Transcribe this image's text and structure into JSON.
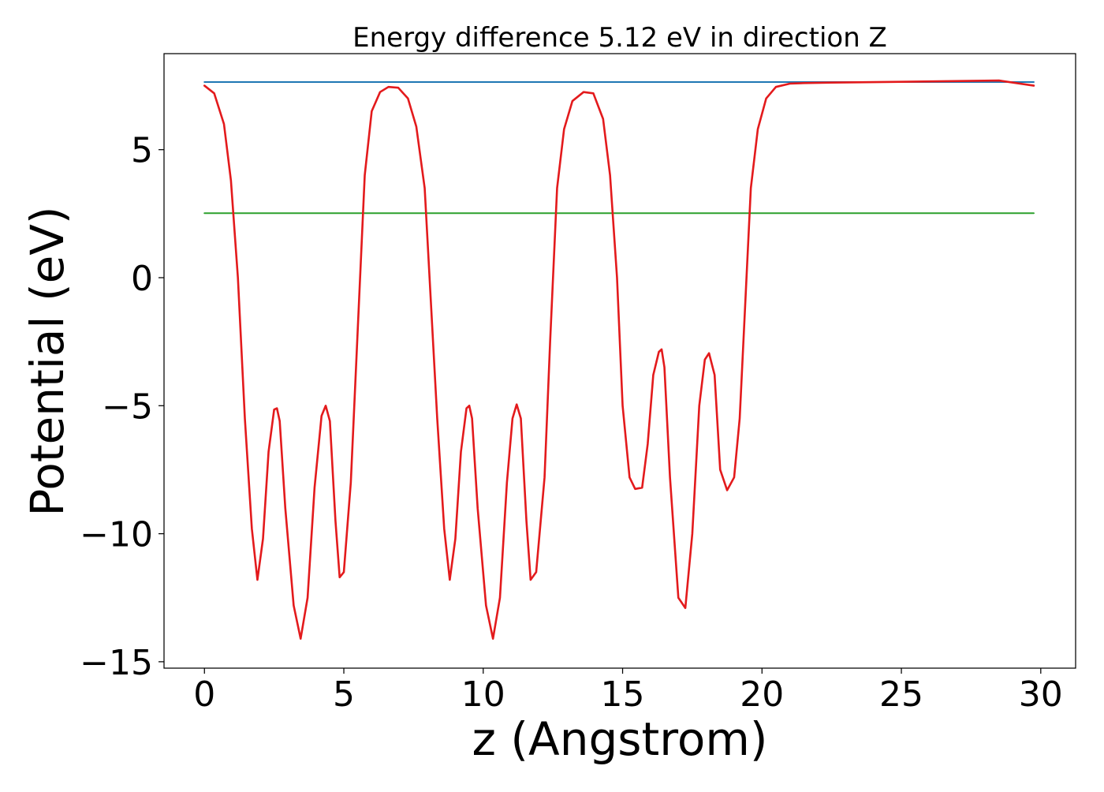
{
  "chart_data": {
    "type": "line",
    "title": "Energy difference 5.12 eV in direction Z",
    "xlabel": "z (Angstrom)",
    "ylabel": "Potential (eV)",
    "xlim": [
      -1.45,
      31.25
    ],
    "ylim": [
      -15.25,
      8.75
    ],
    "x_ticks": [
      0,
      5,
      10,
      15,
      20,
      25,
      30
    ],
    "x_tick_labels": [
      "0",
      "5",
      "10",
      "15",
      "20",
      "25",
      "30"
    ],
    "y_ticks": [
      5,
      0,
      -5,
      -10,
      -15
    ],
    "y_tick_labels": [
      "5",
      "0",
      "−5",
      "−10",
      "−15"
    ],
    "grid": false,
    "legend": "none",
    "series": [
      {
        "color": "#1f77b4",
        "x": [
          0,
          29.75
        ],
        "y": [
          7.64,
          7.64
        ]
      },
      {
        "color": "#2ca02c",
        "x": [
          0,
          29.75
        ],
        "y": [
          2.52,
          2.52
        ]
      },
      {
        "color": "#e31a1c",
        "x": [
          0,
          0.35,
          0.7,
          0.95,
          1.2,
          1.45,
          1.7,
          1.9,
          2.1,
          2.3,
          2.5,
          2.6,
          2.7,
          2.9,
          3.2,
          3.45,
          3.7,
          3.95,
          4.2,
          4.35,
          4.5,
          4.7,
          4.85,
          5.0,
          5.25,
          5.5,
          5.75,
          6.0,
          6.3,
          6.6,
          6.95,
          7.3,
          7.6,
          7.9,
          8.1,
          8.35,
          8.6,
          8.8,
          9.0,
          9.2,
          9.4,
          9.5,
          9.6,
          9.8,
          10.1,
          10.35,
          10.6,
          10.85,
          11.05,
          11.2,
          11.35,
          11.55,
          11.7,
          11.9,
          12.2,
          12.4,
          12.65,
          12.9,
          13.2,
          13.6,
          13.95,
          14.3,
          14.55,
          14.8,
          15.0,
          15.25,
          15.45,
          15.7,
          15.9,
          16.1,
          16.3,
          16.4,
          16.5,
          16.7,
          17.0,
          17.25,
          17.5,
          17.75,
          17.95,
          18.1,
          18.3,
          18.5,
          18.75,
          19.0,
          19.2,
          19.4,
          19.6,
          19.85,
          20.15,
          20.5,
          21.0,
          21.5,
          22.5,
          25.0,
          28.5,
          29.75
        ],
        "y": [
          7.5,
          7.2,
          6.0,
          3.8,
          0.0,
          -5.5,
          -9.8,
          -11.8,
          -10.2,
          -6.8,
          -5.15,
          -5.1,
          -5.6,
          -9.0,
          -12.8,
          -14.1,
          -12.5,
          -8.2,
          -5.4,
          -5.0,
          -5.6,
          -9.5,
          -11.7,
          -11.5,
          -8.0,
          -2.0,
          4.0,
          6.5,
          7.25,
          7.45,
          7.42,
          7.0,
          5.9,
          3.5,
          -0.5,
          -5.5,
          -9.8,
          -11.8,
          -10.2,
          -6.8,
          -5.1,
          -5.0,
          -5.5,
          -9.0,
          -12.8,
          -14.1,
          -12.5,
          -8.0,
          -5.5,
          -4.95,
          -5.5,
          -9.5,
          -11.8,
          -11.5,
          -7.8,
          -2.5,
          3.5,
          5.8,
          6.9,
          7.25,
          7.2,
          6.2,
          4.0,
          0.0,
          -5.0,
          -7.8,
          -8.25,
          -8.2,
          -6.5,
          -3.8,
          -2.9,
          -2.8,
          -3.5,
          -7.8,
          -12.5,
          -12.9,
          -10.0,
          -5.0,
          -3.2,
          -2.95,
          -3.8,
          -7.5,
          -8.3,
          -7.8,
          -5.5,
          -1.0,
          3.5,
          5.8,
          7.0,
          7.45,
          7.58,
          7.6,
          7.62,
          7.65,
          7.7,
          7.5
        ]
      }
    ]
  }
}
